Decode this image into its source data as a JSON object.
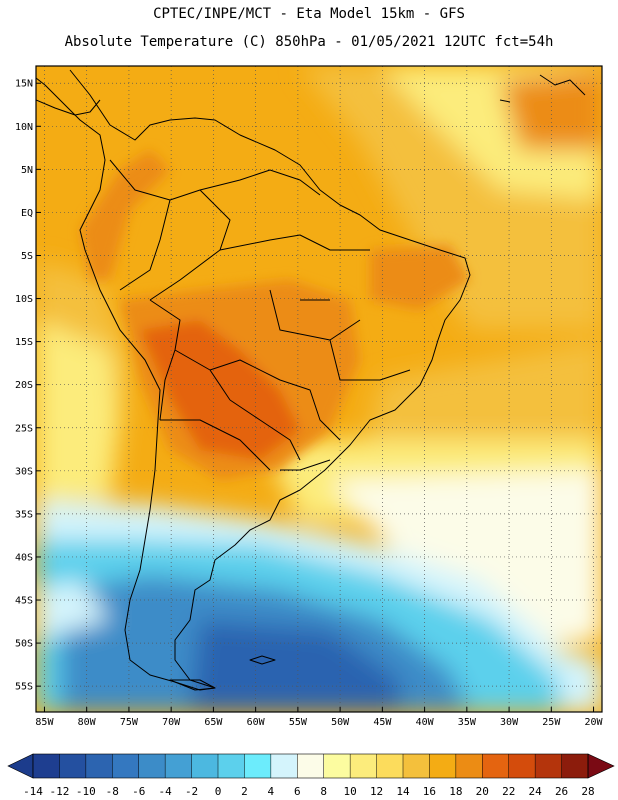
{
  "header": {
    "line1": "CPTEC/INPE/MCT  -   Eta Model 15km  -  GFS",
    "line2": "Absolute Temperature (C) 850hPa - 01/05/2021 12UTC fct=54h"
  },
  "map": {
    "lon_range": [
      -86,
      -19
    ],
    "lat_range": [
      -58,
      17
    ],
    "lat_ticks": [
      {
        "value": 15,
        "label": "15N"
      },
      {
        "value": 10,
        "label": "10N"
      },
      {
        "value": 5,
        "label": "5N"
      },
      {
        "value": 0,
        "label": "EQ"
      },
      {
        "value": -5,
        "label": "5S"
      },
      {
        "value": -10,
        "label": "10S"
      },
      {
        "value": -15,
        "label": "15S"
      },
      {
        "value": -20,
        "label": "20S"
      },
      {
        "value": -25,
        "label": "25S"
      },
      {
        "value": -30,
        "label": "30S"
      },
      {
        "value": -35,
        "label": "35S"
      },
      {
        "value": -40,
        "label": "40S"
      },
      {
        "value": -45,
        "label": "45S"
      },
      {
        "value": -50,
        "label": "50S"
      },
      {
        "value": -55,
        "label": "55S"
      }
    ],
    "lon_ticks": [
      {
        "value": -85,
        "label": "85W"
      },
      {
        "value": -80,
        "label": "80W"
      },
      {
        "value": -75,
        "label": "75W"
      },
      {
        "value": -70,
        "label": "70W"
      },
      {
        "value": -65,
        "label": "65W"
      },
      {
        "value": -60,
        "label": "60W"
      },
      {
        "value": -55,
        "label": "55W"
      },
      {
        "value": -50,
        "label": "50W"
      },
      {
        "value": -45,
        "label": "45W"
      },
      {
        "value": -40,
        "label": "40W"
      },
      {
        "value": -35,
        "label": "35W"
      },
      {
        "value": -30,
        "label": "30W"
      },
      {
        "value": -25,
        "label": "25W"
      },
      {
        "value": -20,
        "label": "20W"
      }
    ]
  },
  "colorbar": {
    "labels": [
      "-14",
      "-12",
      "-10",
      "-8",
      "-6",
      "-4",
      "-2",
      "0",
      "2",
      "4",
      "6",
      "8",
      "10",
      "12",
      "14",
      "16",
      "18",
      "20",
      "22",
      "24",
      "26",
      "28"
    ],
    "low_color": "#1c3c8c",
    "high_color": "#7a0a14",
    "colors": [
      "#1e3e90",
      "#2450a0",
      "#2c64b0",
      "#3478c0",
      "#3c8cc8",
      "#44a0d4",
      "#4cb8e0",
      "#5cd0ec",
      "#6cecfc",
      "#d4f4fc",
      "#fcfce8",
      "#fcfca0",
      "#fcec7c",
      "#fcdc5c",
      "#f4c03c",
      "#f4ac14",
      "#ec8c14",
      "#e46410",
      "#d44c0c",
      "#b4340c",
      "#8c1c0c"
    ]
  },
  "field_colors": {
    "ocean_deep_blue": "#2c64b0",
    "ocean_blue": "#3c8cc8",
    "ocean_cyan": "#5cd0ec",
    "ocean_pale": "#d4f4fc",
    "cream": "#fcfce8",
    "yellow": "#fcec7c",
    "gold": "#f4c03c",
    "orange": "#f4ac14",
    "dark_orange": "#ec8c14",
    "red_orange": "#e46410"
  }
}
